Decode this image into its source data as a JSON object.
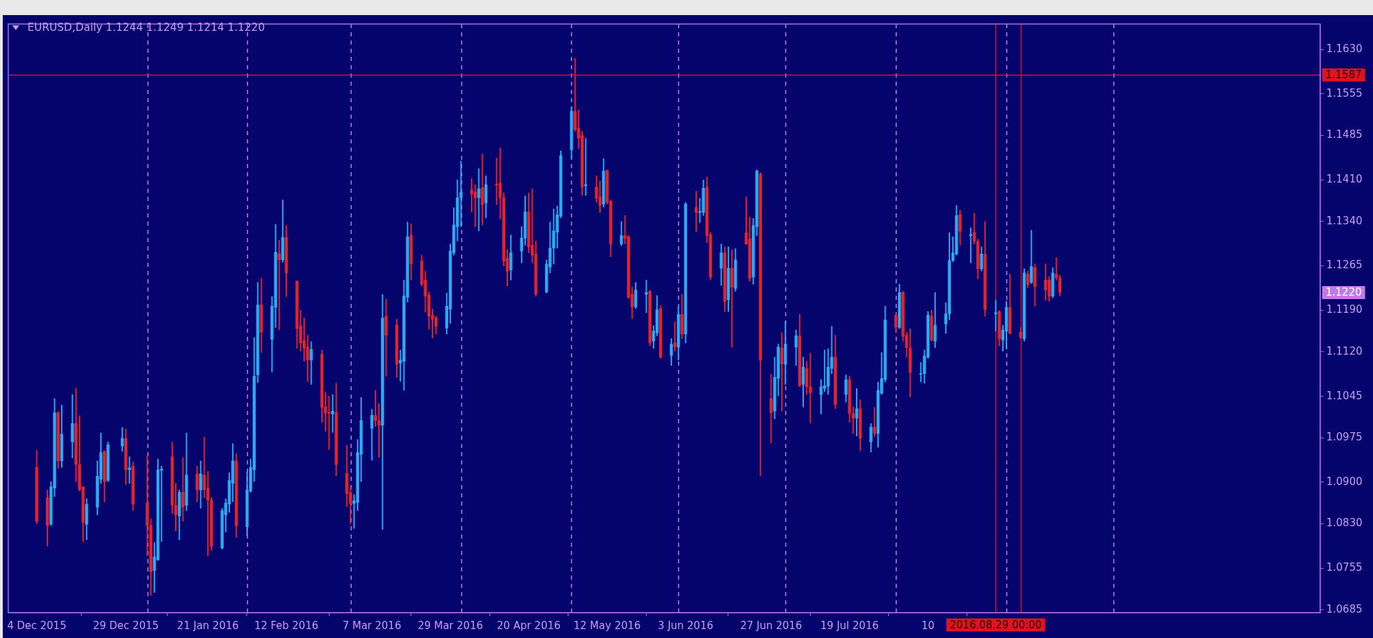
{
  "chart_data": {
    "type": "candlestick",
    "title": "EURUSD,Daily 1.1244 1.1249 1.1214 1.1220",
    "x": [
      "2015-12-04",
      "2015-12-07",
      "2015-12-08",
      "2015-12-09",
      "2015-12-10",
      "2015-12-11",
      "2015-12-14",
      "2015-12-15",
      "2015-12-16",
      "2015-12-17",
      "2015-12-18",
      "2015-12-21",
      "2015-12-22",
      "2015-12-23",
      "2015-12-24",
      "2015-12-28",
      "2015-12-29",
      "2015-12-30",
      "2015-12-31",
      "2016-01-04",
      "2016-01-05",
      "2016-01-06",
      "2016-01-07",
      "2016-01-08",
      "2016-01-11",
      "2016-01-12",
      "2016-01-13",
      "2016-01-14",
      "2016-01-15",
      "2016-01-18",
      "2016-01-19",
      "2016-01-20",
      "2016-01-21",
      "2016-01-22",
      "2016-01-25",
      "2016-01-26",
      "2016-01-27",
      "2016-01-28",
      "2016-01-29",
      "2016-02-01",
      "2016-02-02",
      "2016-02-03",
      "2016-02-04",
      "2016-02-05",
      "2016-02-08",
      "2016-02-09",
      "2016-02-10",
      "2016-02-11",
      "2016-02-12",
      "2016-02-15",
      "2016-02-16",
      "2016-02-17",
      "2016-02-18",
      "2016-02-19",
      "2016-02-22",
      "2016-02-23",
      "2016-02-24",
      "2016-02-25",
      "2016-02-26",
      "2016-02-29",
      "2016-03-01",
      "2016-03-02",
      "2016-03-03",
      "2016-03-04",
      "2016-03-07",
      "2016-03-08",
      "2016-03-09",
      "2016-03-10",
      "2016-03-11",
      "2016-03-14",
      "2016-03-15",
      "2016-03-16",
      "2016-03-17",
      "2016-03-18",
      "2016-03-21",
      "2016-03-22",
      "2016-03-23",
      "2016-03-24",
      "2016-03-25",
      "2016-03-28",
      "2016-03-29",
      "2016-03-30",
      "2016-03-31",
      "2016-04-01",
      "2016-04-04",
      "2016-04-05",
      "2016-04-06",
      "2016-04-07",
      "2016-04-08",
      "2016-04-11",
      "2016-04-12",
      "2016-04-13",
      "2016-04-14",
      "2016-04-15",
      "2016-04-18",
      "2016-04-19",
      "2016-04-20",
      "2016-04-21",
      "2016-04-22",
      "2016-04-25",
      "2016-04-26",
      "2016-04-27",
      "2016-04-28",
      "2016-04-29",
      "2016-05-02",
      "2016-05-03",
      "2016-05-04",
      "2016-05-05",
      "2016-05-06",
      "2016-05-09",
      "2016-05-10",
      "2016-05-11",
      "2016-05-12",
      "2016-05-13",
      "2016-05-16",
      "2016-05-17",
      "2016-05-18",
      "2016-05-19",
      "2016-05-20",
      "2016-05-23",
      "2016-05-24",
      "2016-05-25",
      "2016-05-26",
      "2016-05-27",
      "2016-05-30",
      "2016-05-31",
      "2016-06-01",
      "2016-06-02",
      "2016-06-03",
      "2016-06-06",
      "2016-06-07",
      "2016-06-08",
      "2016-06-09",
      "2016-06-10",
      "2016-06-13",
      "2016-06-14",
      "2016-06-15",
      "2016-06-16",
      "2016-06-17",
      "2016-06-20",
      "2016-06-21",
      "2016-06-22",
      "2016-06-23",
      "2016-06-24",
      "2016-06-27",
      "2016-06-28",
      "2016-06-29",
      "2016-06-30",
      "2016-07-01",
      "2016-07-04",
      "2016-07-05",
      "2016-07-06",
      "2016-07-07",
      "2016-07-08",
      "2016-07-11",
      "2016-07-12",
      "2016-07-13",
      "2016-07-14",
      "2016-07-15",
      "2016-07-18",
      "2016-07-19",
      "2016-07-20",
      "2016-07-21",
      "2016-07-22",
      "2016-07-25",
      "2016-07-26",
      "2016-07-27",
      "2016-07-28",
      "2016-07-29",
      "2016-08-01",
      "2016-08-02",
      "2016-08-03",
      "2016-08-04",
      "2016-08-05",
      "2016-08-08",
      "2016-08-09",
      "2016-08-10",
      "2016-08-11",
      "2016-08-12",
      "2016-08-15",
      "2016-08-16",
      "2016-08-17",
      "2016-08-18",
      "2016-08-19",
      "2016-08-22",
      "2016-08-23",
      "2016-08-24",
      "2016-08-25",
      "2016-08-26",
      "2016-08-29",
      "2016-08-30",
      "2016-08-31",
      "2016-09-01",
      "2016-09-02",
      "2016-09-05",
      "2016-09-06",
      "2016-09-07",
      "2016-09-08",
      "2016-09-09",
      "2016-09-12",
      "2016-09-13",
      "2016-09-14",
      "2016-09-15",
      "2016-09-16"
    ],
    "ohlc": [
      [
        1.0925,
        1.0954,
        1.083,
        1.0834
      ],
      [
        1.0874,
        1.0887,
        1.0792,
        1.0827
      ],
      [
        1.0829,
        1.0901,
        1.0827,
        1.0892
      ],
      [
        1.089,
        1.1041,
        1.0876,
        1.1017
      ],
      [
        1.1017,
        1.1019,
        1.0923,
        1.0936
      ],
      [
        1.0936,
        1.103,
        1.0925,
        1.0981
      ],
      [
        1.0968,
        1.1048,
        1.0941,
        1.0999
      ],
      [
        1.0999,
        1.1059,
        1.0901,
        1.093
      ],
      [
        1.093,
        1.1012,
        1.0885,
        1.0887
      ],
      [
        1.0892,
        1.0893,
        1.08,
        1.0832
      ],
      [
        1.0829,
        1.0872,
        1.0803,
        1.0863
      ],
      [
        1.0858,
        1.0936,
        1.0845,
        1.091
      ],
      [
        1.0905,
        1.0983,
        1.0898,
        1.095
      ],
      [
        1.0952,
        1.0953,
        1.0867,
        1.0901
      ],
      [
        1.0903,
        1.0968,
        1.0901,
        1.0963
      ],
      [
        1.0961,
        1.0992,
        1.0952,
        1.0974
      ],
      [
        1.0974,
        1.099,
        1.0896,
        1.0921
      ],
      [
        1.0921,
        1.0943,
        1.0898,
        1.0924
      ],
      [
        1.0927,
        1.0934,
        1.0852,
        1.0863
      ],
      [
        1.0865,
        1.0945,
        1.0776,
        1.0827
      ],
      [
        1.0827,
        1.0838,
        1.0709,
        1.0749
      ],
      [
        1.0751,
        1.0798,
        1.0714,
        1.0774
      ],
      [
        1.0769,
        1.0939,
        1.0768,
        1.0921
      ],
      [
        1.092,
        1.0927,
        1.08,
        1.0922
      ],
      [
        1.0943,
        1.0968,
        1.0847,
        1.0861
      ],
      [
        1.0861,
        1.0898,
        1.0818,
        1.0845
      ],
      [
        1.0843,
        1.0887,
        1.0803,
        1.0883
      ],
      [
        1.0883,
        1.0941,
        1.0834,
        1.0858
      ],
      [
        1.0861,
        1.0983,
        1.0852,
        1.0912
      ],
      [
        1.0914,
        1.0927,
        1.0867,
        1.0887
      ],
      [
        1.0887,
        1.0936,
        1.0856,
        1.0914
      ],
      [
        1.0912,
        1.0976,
        1.0874,
        1.0887
      ],
      [
        1.089,
        1.0918,
        1.0776,
        1.087
      ],
      [
        1.087,
        1.0874,
        1.0785,
        1.0792
      ],
      [
        1.0789,
        1.0856,
        1.0787,
        1.0852
      ],
      [
        1.0845,
        1.0872,
        1.0816,
        1.0865
      ],
      [
        1.0863,
        1.0916,
        1.0849,
        1.0903
      ],
      [
        1.0898,
        1.0965,
        1.0867,
        1.0936
      ],
      [
        1.0936,
        1.0948,
        1.0807,
        1.0827
      ],
      [
        1.0825,
        1.0918,
        1.0809,
        1.0887
      ],
      [
        1.0885,
        1.0939,
        1.0883,
        1.0925
      ],
      [
        1.0921,
        1.1144,
        1.0901,
        1.1079
      ],
      [
        1.1081,
        1.1237,
        1.1068,
        1.1199
      ],
      [
        1.1199,
        1.1244,
        1.1119,
        1.1153
      ],
      [
        1.1141,
        1.1213,
        1.1086,
        1.1197
      ],
      [
        1.1195,
        1.1335,
        1.1161,
        1.1288
      ],
      [
        1.1286,
        1.1308,
        1.1157,
        1.1275
      ],
      [
        1.1275,
        1.1376,
        1.1271,
        1.1313
      ],
      [
        1.1313,
        1.1333,
        1.1213,
        1.1253
      ],
      [
        1.1239,
        1.124,
        1.1126,
        1.1159
      ],
      [
        1.1164,
        1.119,
        1.1121,
        1.1135
      ],
      [
        1.1139,
        1.1177,
        1.1104,
        1.1126
      ],
      [
        1.1128,
        1.1148,
        1.107,
        1.1106
      ],
      [
        1.1106,
        1.1137,
        1.1065,
        1.1124
      ],
      [
        1.1116,
        1.1123,
        1.1001,
        1.1026
      ],
      [
        1.1027,
        1.1052,
        1.0986,
        1.1017
      ],
      [
        1.1018,
        1.1045,
        1.0955,
        1.1016
      ],
      [
        1.1015,
        1.1048,
        1.0984,
        1.102
      ],
      [
        1.1018,
        1.1067,
        1.0911,
        1.093
      ],
      [
        1.0915,
        1.0962,
        1.0859,
        1.0881
      ],
      [
        1.0883,
        1.0891,
        1.083,
        1.0864
      ],
      [
        1.0864,
        1.0879,
        1.0822,
        1.0869
      ],
      [
        1.0866,
        1.0972,
        1.0852,
        1.095
      ],
      [
        1.0947,
        1.1043,
        1.0901,
        1.1004
      ],
      [
        1.0991,
        1.1023,
        1.0937,
        1.1013
      ],
      [
        1.1013,
        1.1055,
        1.0994,
        1.1004
      ],
      [
        1.1004,
        1.1033,
        1.0942,
        1.0996
      ],
      [
        1.0996,
        1.1217,
        1.082,
        1.1177
      ],
      [
        1.118,
        1.1209,
        1.1079,
        1.1148
      ],
      [
        1.1165,
        1.1175,
        1.1077,
        1.1099
      ],
      [
        1.1101,
        1.1123,
        1.107,
        1.1106
      ],
      [
        1.1104,
        1.1241,
        1.1055,
        1.1214
      ],
      [
        1.1212,
        1.1339,
        1.1204,
        1.1314
      ],
      [
        1.1317,
        1.1336,
        1.1241,
        1.1268
      ],
      [
        1.1273,
        1.1283,
        1.1231,
        1.1234
      ],
      [
        1.1241,
        1.1256,
        1.1187,
        1.1214
      ],
      [
        1.1216,
        1.1221,
        1.1158,
        1.118
      ],
      [
        1.1182,
        1.1192,
        1.1143,
        1.1175
      ],
      [
        1.1177,
        1.118,
        1.115,
        1.1163
      ],
      [
        1.116,
        1.1219,
        1.115,
        1.1197
      ],
      [
        1.1192,
        1.1302,
        1.1168,
        1.129
      ],
      [
        1.1287,
        1.1363,
        1.1283,
        1.1334
      ],
      [
        1.1331,
        1.141,
        1.1307,
        1.138
      ],
      [
        1.138,
        1.1442,
        1.1331,
        1.1389
      ],
      [
        1.1393,
        1.1412,
        1.1356,
        1.1386
      ],
      [
        1.139,
        1.1402,
        1.1331,
        1.138
      ],
      [
        1.138,
        1.1429,
        1.1324,
        1.1395
      ],
      [
        1.1397,
        1.1454,
        1.1334,
        1.1368
      ],
      [
        1.1371,
        1.1417,
        1.1346,
        1.1402
      ],
      [
        1.1403,
        1.1447,
        1.1368,
        1.1401
      ],
      [
        1.1405,
        1.1464,
        1.1344,
        1.138
      ],
      [
        1.138,
        1.1388,
        1.1265,
        1.1273
      ],
      [
        1.1278,
        1.1292,
        1.1231,
        1.1256
      ],
      [
        1.1258,
        1.1317,
        1.1241,
        1.1287
      ],
      [
        1.129,
        1.1331,
        1.127,
        1.1312
      ],
      [
        1.1312,
        1.1383,
        1.13,
        1.1356
      ],
      [
        1.1356,
        1.1388,
        1.1287,
        1.1297
      ],
      [
        1.13,
        1.1395,
        1.127,
        1.1283
      ],
      [
        1.1285,
        1.1307,
        1.1214,
        1.1217
      ],
      [
        1.1221,
        1.1275,
        1.1219,
        1.1268
      ],
      [
        1.1263,
        1.1339,
        1.1253,
        1.1295
      ],
      [
        1.1295,
        1.1361,
        1.1268,
        1.1324
      ],
      [
        1.1322,
        1.1366,
        1.1295,
        1.1351
      ],
      [
        1.1349,
        1.1459,
        1.1346,
        1.1451
      ],
      [
        1.1461,
        1.1533,
        1.1446,
        1.1526
      ],
      [
        1.1526,
        1.1615,
        1.1492,
        1.1495
      ],
      [
        1.1497,
        1.1528,
        1.1463,
        1.148
      ],
      [
        1.1485,
        1.1492,
        1.1384,
        1.1398
      ],
      [
        1.14,
        1.148,
        1.1384,
        1.1402
      ],
      [
        1.1398,
        1.1417,
        1.1372,
        1.1379
      ],
      [
        1.1381,
        1.1408,
        1.1355,
        1.1367
      ],
      [
        1.1369,
        1.1446,
        1.1364,
        1.1425
      ],
      [
        1.1426,
        1.1427,
        1.1369,
        1.1372
      ],
      [
        1.1374,
        1.1376,
        1.128,
        1.1302
      ],
      [
        1.1302,
        1.134,
        1.1299,
        1.1316
      ],
      [
        1.1316,
        1.135,
        1.1302,
        1.1311
      ],
      [
        1.1314,
        1.1316,
        1.121,
        1.1212
      ],
      [
        1.1217,
        1.1229,
        1.1176,
        1.1196
      ],
      [
        1.1196,
        1.1237,
        1.1193,
        1.1224
      ],
      [
        1.1217,
        1.1241,
        1.1186,
        1.122
      ],
      [
        1.1222,
        1.1224,
        1.113,
        1.1135
      ],
      [
        1.1138,
        1.1164,
        1.1126,
        1.1155
      ],
      [
        1.1152,
        1.1215,
        1.1147,
        1.1191
      ],
      [
        1.1193,
        1.1198,
        1.1109,
        1.1111
      ],
      [
        1.1114,
        1.1142,
        1.1097,
        1.1133
      ],
      [
        1.1135,
        1.1171,
        1.1121,
        1.1128
      ],
      [
        1.1128,
        1.1196,
        1.1106,
        1.1183
      ],
      [
        1.1183,
        1.1217,
        1.1142,
        1.115
      ],
      [
        1.115,
        1.1372,
        1.1135,
        1.1369
      ],
      [
        1.1364,
        1.1391,
        1.1323,
        1.1355
      ],
      [
        1.1355,
        1.1379,
        1.1338,
        1.1357
      ],
      [
        1.1355,
        1.141,
        1.135,
        1.1396
      ],
      [
        1.1398,
        1.1415,
        1.1304,
        1.1316
      ],
      [
        1.1318,
        1.1321,
        1.1241,
        1.1246
      ],
      [
        1.1261,
        1.1302,
        1.1232,
        1.1287
      ],
      [
        1.1287,
        1.1297,
        1.1188,
        1.1205
      ],
      [
        1.1208,
        1.1297,
        1.1188,
        1.1261
      ],
      [
        1.1261,
        1.1292,
        1.1128,
        1.1229
      ],
      [
        1.1227,
        1.1294,
        1.1222,
        1.1275
      ],
      [
        1.1321,
        1.1381,
        1.1301,
        1.1302
      ],
      [
        1.1311,
        1.1347,
        1.1239,
        1.1244
      ],
      [
        1.1246,
        1.1345,
        1.1234,
        1.1333
      ],
      [
        1.1331,
        1.1427,
        1.1316,
        1.1425
      ],
      [
        1.142,
        1.1422,
        1.0911,
        1.1106
      ],
      [
        1.1041,
        1.1082,
        1.0966,
        1.1017
      ],
      [
        1.102,
        1.1111,
        1.1007,
        1.1077
      ],
      [
        1.1075,
        1.1133,
        1.1046,
        1.1128
      ],
      [
        1.1126,
        1.1152,
        1.102,
        1.1099
      ],
      [
        1.1099,
        1.1171,
        1.1065,
        1.1133
      ],
      [
        1.1128,
        1.1157,
        1.1097,
        1.1147
      ],
      [
        1.1147,
        1.1183,
        1.1061,
        1.1063
      ],
      [
        1.1065,
        1.1111,
        1.1027,
        1.1094
      ],
      [
        1.1092,
        1.1104,
        1.1048,
        1.1061
      ],
      [
        1.1061,
        1.1118,
        1.1,
        1.1051
      ],
      [
        1.1048,
        1.1073,
        1.1015,
        1.1061
      ],
      [
        1.1058,
        1.1123,
        1.1053,
        1.1063
      ],
      [
        1.1062,
        1.1125,
        1.1048,
        1.1094
      ],
      [
        1.1092,
        1.1163,
        1.1083,
        1.1111
      ],
      [
        1.1111,
        1.1148,
        1.1024,
        1.1031
      ],
      [
        1.1048,
        1.1081,
        1.1035,
        1.1073
      ],
      [
        1.1073,
        1.1079,
        1.1001,
        1.1016
      ],
      [
        1.1016,
        1.1027,
        1.0982,
        1.1008
      ],
      [
        1.1008,
        1.1058,
        1.0978,
        1.1024
      ],
      [
        1.1024,
        1.1039,
        1.0953,
        1.0974
      ],
      [
        1.0968,
        1.0999,
        1.0951,
        1.0993
      ],
      [
        1.0993,
        1.1026,
        1.0977,
        1.0982
      ],
      [
        1.0982,
        1.1069,
        1.0959,
        1.1055
      ],
      [
        1.105,
        1.1119,
        1.1048,
        1.1075
      ],
      [
        1.1073,
        1.1197,
        1.1069,
        1.1174
      ],
      [
        1.1182,
        1.1184,
        1.1153,
        1.1161
      ],
      [
        1.1161,
        1.1234,
        1.1159,
        1.122
      ],
      [
        1.122,
        1.1222,
        1.1138,
        1.1146
      ],
      [
        1.1148,
        1.1153,
        1.1111,
        1.1127
      ],
      [
        1.1127,
        1.1159,
        1.1044,
        1.1085
      ],
      [
        1.1082,
        1.1102,
        1.1069,
        1.1083
      ],
      [
        1.1083,
        1.1123,
        1.1067,
        1.1113
      ],
      [
        1.1111,
        1.1188,
        1.1109,
        1.1182
      ],
      [
        1.118,
        1.119,
        1.1138,
        1.114
      ],
      [
        1.1138,
        1.122,
        1.1127,
        1.1165
      ],
      [
        1.1167,
        1.1203,
        1.1151,
        1.1184
      ],
      [
        1.1184,
        1.1321,
        1.1174,
        1.1274
      ],
      [
        1.1274,
        1.1314,
        1.1272,
        1.1287
      ],
      [
        1.1285,
        1.1367,
        1.1283,
        1.135
      ],
      [
        1.1352,
        1.1359,
        1.13,
        1.1323
      ],
      [
        1.1316,
        1.1329,
        1.127,
        1.1318
      ],
      [
        1.1321,
        1.1354,
        1.1302,
        1.1306
      ],
      [
        1.1306,
        1.131,
        1.1243,
        1.126
      ],
      [
        1.126,
        1.1297,
        1.1256,
        1.1285
      ],
      [
        1.1285,
        1.134,
        1.118,
        1.1191
      ],
      [
        1.1184,
        1.1207,
        1.1155,
        1.1186
      ],
      [
        1.1188,
        1.119,
        1.113,
        1.1142
      ],
      [
        1.114,
        1.1165,
        1.1121,
        1.1157
      ],
      [
        1.1155,
        1.1205,
        1.1125,
        1.1195
      ],
      [
        1.1195,
        1.1251,
        1.115,
        1.1151
      ],
      [
        1.1153,
        1.1161,
        1.1142,
        1.1144
      ],
      [
        1.1142,
        1.126,
        1.1138,
        1.1253
      ],
      [
        1.1251,
        1.1256,
        1.1228,
        1.1233
      ],
      [
        1.1237,
        1.1325,
        1.1235,
        1.1264
      ],
      [
        1.1262,
        1.1268,
        1.1197,
        1.123
      ],
      [
        1.1241,
        1.1268,
        1.1207,
        1.1224
      ],
      [
        1.1241,
        1.1247,
        1.1205,
        1.1214
      ],
      [
        1.1214,
        1.1262,
        1.1211,
        1.1253
      ],
      [
        1.1251,
        1.1279,
        1.1241,
        1.1245
      ],
      [
        1.1244,
        1.1249,
        1.1214,
        1.122
      ]
    ],
    "colors": [
      "#e1242b",
      "#e1242b",
      "#2ea8f0",
      "#2ea8f0",
      "#e1242b",
      "#2ea8f0",
      "#2ea8f0",
      "#e1242b",
      "#e1242b",
      "#e1242b",
      "#2ea8f0",
      "#2ea8f0",
      "#2ea8f0",
      "#e1242b",
      "#2ea8f0",
      "#2ea8f0",
      "#e1242b",
      "#2ea8f0",
      "#e1242b",
      "#e1242b",
      "#e1242b",
      "#2ea8f0",
      "#2ea8f0",
      "#2ea8f0",
      "#e1242b",
      "#e1242b",
      "#2ea8f0",
      "#e1242b",
      "#2ea8f0",
      "#e1242b",
      "#2ea8f0",
      "#e1242b",
      "#e1242b",
      "#e1242b",
      "#2ea8f0",
      "#2ea8f0",
      "#2ea8f0",
      "#2ea8f0",
      "#e1242b",
      "#2ea8f0",
      "#2ea8f0",
      "#2ea8f0",
      "#2ea8f0",
      "#e1242b",
      "#2ea8f0",
      "#2ea8f0",
      "#e1242b",
      "#2ea8f0",
      "#e1242b",
      "#e1242b",
      "#e1242b",
      "#e1242b",
      "#e1242b",
      "#2ea8f0",
      "#e1242b",
      "#e1242b",
      "#e1242b",
      "#2ea8f0",
      "#e1242b",
      "#e1242b",
      "#e1242b",
      "#2ea8f0",
      "#2ea8f0",
      "#2ea8f0",
      "#2ea8f0",
      "#e1242b",
      "#e1242b",
      "#2ea8f0",
      "#e1242b",
      "#e1242b",
      "#2ea8f0",
      "#2ea8f0",
      "#2ea8f0",
      "#e1242b",
      "#e1242b",
      "#e1242b",
      "#e1242b",
      "#e1242b",
      "#e1242b",
      "#2ea8f0",
      "#2ea8f0",
      "#2ea8f0",
      "#2ea8f0",
      "#2ea8f0",
      "#e1242b",
      "#e1242b",
      "#2ea8f0",
      "#e1242b",
      "#2ea8f0",
      "#e1242b",
      "#e1242b",
      "#e1242b",
      "#e1242b",
      "#2ea8f0",
      "#2ea8f0",
      "#2ea8f0",
      "#e1242b",
      "#e1242b",
      "#e1242b",
      "#2ea8f0",
      "#2ea8f0",
      "#2ea8f0",
      "#2ea8f0",
      "#2ea8f0",
      "#2ea8f0",
      "#e1242b",
      "#e1242b",
      "#e1242b",
      "#2ea8f0",
      "#e1242b",
      "#e1242b",
      "#2ea8f0",
      "#e1242b",
      "#e1242b",
      "#2ea8f0",
      "#e1242b",
      "#e1242b",
      "#e1242b",
      "#2ea8f0",
      "#2ea8f0",
      "#e1242b",
      "#2ea8f0",
      "#2ea8f0",
      "#e1242b",
      "#2ea8f0",
      "#e1242b",
      "#2ea8f0",
      "#e1242b",
      "#2ea8f0",
      "#e1242b",
      "#2ea8f0",
      "#2ea8f0",
      "#e1242b",
      "#e1242b",
      "#2ea8f0",
      "#e1242b",
      "#2ea8f0",
      "#e1242b",
      "#2ea8f0",
      "#e1242b",
      "#e1242b",
      "#2ea8f0",
      "#2ea8f0",
      "#e1242b",
      "#e1242b",
      "#2ea8f0",
      "#2ea8f0",
      "#e1242b",
      "#2ea8f0",
      "#2ea8f0",
      "#e1242b",
      "#2ea8f0",
      "#e1242b",
      "#e1242b",
      "#2ea8f0",
      "#2ea8f0",
      "#2ea8f0",
      "#2ea8f0",
      "#e1242b",
      "#2ea8f0",
      "#e1242b",
      "#e1242b",
      "#2ea8f0",
      "#e1242b",
      "#2ea8f0",
      "#e1242b",
      "#2ea8f0",
      "#2ea8f0",
      "#2ea8f0",
      "#e1242b",
      "#2ea8f0",
      "#e1242b",
      "#e1242b",
      "#e1242b",
      "#2ea8f0",
      "#2ea8f0",
      "#2ea8f0",
      "#e1242b",
      "#2ea8f0",
      "#2ea8f0",
      "#2ea8f0",
      "#2ea8f0",
      "#2ea8f0",
      "#e1242b",
      "#2ea8f0",
      "#e1242b",
      "#e1242b",
      "#2ea8f0",
      "#e1242b",
      "#2ea8f0",
      "#e1242b",
      "#2ea8f0",
      "#2ea8f0",
      "#e1242b",
      "#e1242b",
      "#2ea8f0",
      "#e1242b",
      "#2ea8f0",
      "#e1242b",
      "#e1242b",
      "#e1242b",
      "#2ea8f0",
      "#e1242b",
      "#e1242b"
    ],
    "xlim": [
      "2015-11-26",
      "2016-11-28"
    ],
    "xticks": [
      {
        "value": "2015-12-04",
        "label": "4 Dec 2015"
      },
      {
        "value": "2015-12-29",
        "label": "29 Dec 2015"
      },
      {
        "value": "2016-01-21",
        "label": "21 Jan 2016"
      },
      {
        "value": "2016-02-12",
        "label": "12 Feb 2016"
      },
      {
        "value": "2016-03-07",
        "label": "7 Mar 2016"
      },
      {
        "value": "2016-03-29",
        "label": "29 Mar 2016"
      },
      {
        "value": "2016-04-20",
        "label": "20 Apr 2016"
      },
      {
        "value": "2016-05-12",
        "label": "12 May 2016"
      },
      {
        "value": "2016-06-03",
        "label": "3 Jun 2016"
      },
      {
        "value": "2016-06-27",
        "label": "27 Jun 2016"
      },
      {
        "value": "2016-07-19",
        "label": "19 Jul 2016"
      },
      {
        "value": "2016-08-10",
        "label": "10"
      }
    ],
    "ylim": [
      1.068,
      1.1673
    ],
    "yticks": [
      {
        "value": 1.163,
        "label": "1.1630"
      },
      1.1555,
      1.1485,
      {
        "value": 1.141,
        "label": "1.1410"
      },
      {
        "value": 1.134,
        "label": "1.1340"
      },
      1.1265,
      {
        "value": 1.119,
        "label": "1.1190"
      },
      {
        "value": 1.112,
        "label": "1.1120"
      },
      1.1045,
      1.0975,
      {
        "value": 1.09,
        "label": "1.0900"
      },
      {
        "value": 1.083,
        "label": "1.0830"
      },
      1.0755,
      1.0685
    ],
    "ref_lines": [
      {
        "axis": "x",
        "value": "2016-01-04",
        "color": "#c58cf2",
        "line_style": "dashed"
      },
      {
        "axis": "x",
        "value": "2016-02-01",
        "color": "#c58cf2",
        "line_style": "dashed"
      },
      {
        "axis": "x",
        "value": "2016-03-01",
        "color": "#c58cf2",
        "line_style": "dashed"
      },
      {
        "axis": "x",
        "value": "2016-04-01",
        "color": "#c58cf2",
        "line_style": "dashed"
      },
      {
        "axis": "x",
        "value": "2016-05-02",
        "color": "#c58cf2",
        "line_style": "dashed"
      },
      {
        "axis": "x",
        "value": "2016-06-01",
        "color": "#c58cf2",
        "line_style": "dashed"
      },
      {
        "axis": "x",
        "value": "2016-07-01",
        "color": "#c58cf2",
        "line_style": "dashed"
      },
      {
        "axis": "x",
        "value": "2016-08-01",
        "color": "#c58cf2",
        "line_style": "dashed"
      },
      {
        "axis": "x",
        "value": "2016-09-01",
        "color": "#c58cf2",
        "line_style": "dashed"
      },
      {
        "axis": "x",
        "value": "2016-10-01",
        "color": "#c58cf2",
        "line_style": "dashed"
      },
      {
        "axis": "y",
        "value": 1.1587,
        "label": "1.1587",
        "color": "#e0141e"
      },
      {
        "axis": "x",
        "value": "2016-08-29",
        "label": "2016.08.29 00:00",
        "color": "#e0141e"
      },
      {
        "axis": "x",
        "value": "2016-09-05",
        "color": "#e0141e"
      }
    ],
    "annotations": [
      "1.1220"
    ],
    "grid": false,
    "legend": false
  }
}
